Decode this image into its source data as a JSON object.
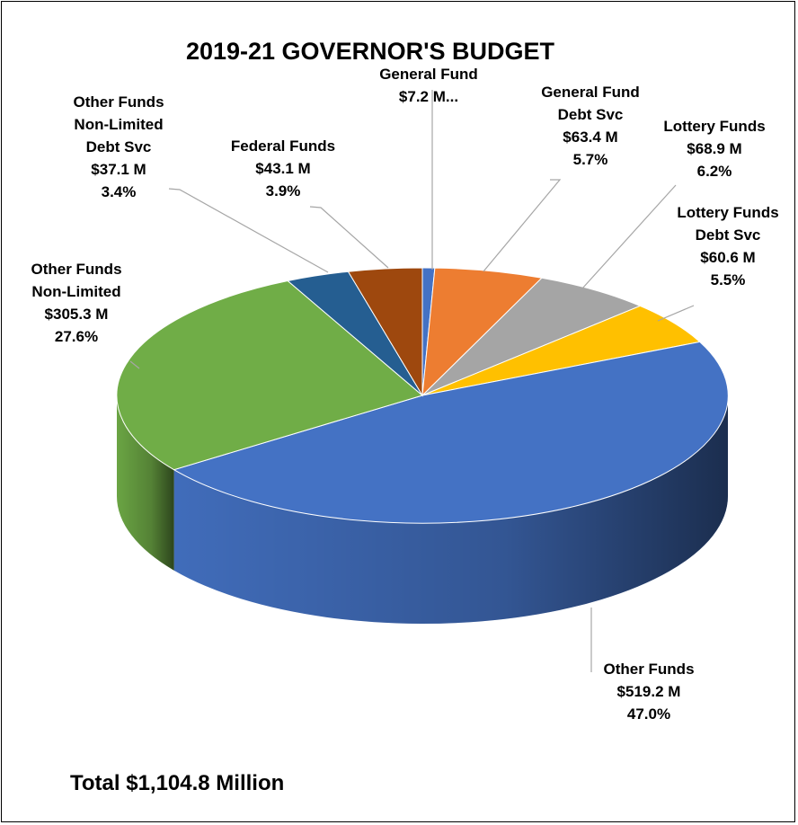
{
  "chart_data": {
    "type": "pie",
    "title": "2019-21 GOVERNOR'S BUDGET",
    "total_label": "Total $1,104.8 Million",
    "slices": [
      {
        "name": "General Fund",
        "value": 7.2,
        "label_lines": [
          "General Fund",
          "$7.2 M..."
        ],
        "color": "#4472c4"
      },
      {
        "name": "General Fund Debt Svc",
        "value": 63.4,
        "percent": 5.7,
        "label_lines": [
          "General Fund",
          "Debt Svc",
          "$63.4 M",
          "5.7%"
        ],
        "color": "#ed7d31"
      },
      {
        "name": "Lottery Funds",
        "value": 68.9,
        "percent": 6.2,
        "label_lines": [
          "Lottery Funds",
          "$68.9 M",
          "6.2%"
        ],
        "color": "#a5a5a5"
      },
      {
        "name": "Lottery Funds Debt Svc",
        "value": 60.6,
        "percent": 5.5,
        "label_lines": [
          "Lottery Funds",
          "Debt Svc",
          "$60.6 M",
          "5.5%"
        ],
        "color": "#ffc000"
      },
      {
        "name": "Other Funds",
        "value": 519.2,
        "percent": 47.0,
        "label_lines": [
          "Other Funds",
          "$519.2 M",
          "47.0%"
        ],
        "color": "#4472c4"
      },
      {
        "name": "Other Funds Non-Limited",
        "value": 305.3,
        "percent": 27.6,
        "label_lines": [
          "Other Funds",
          "Non-Limited",
          "$305.3 M",
          "27.6%"
        ],
        "color": "#70ad47"
      },
      {
        "name": "Other Funds Non-Limited Debt Svc",
        "value": 37.1,
        "percent": 3.4,
        "label_lines": [
          "Other Funds",
          "Non-Limited",
          "Debt Svc",
          "$37.1 M",
          "3.4%"
        ],
        "color": "#255e91"
      },
      {
        "name": "Federal Funds",
        "value": 43.1,
        "percent": 3.9,
        "label_lines": [
          "Federal Funds",
          "$43.1 M",
          "3.9%"
        ],
        "color": "#9e480e"
      }
    ]
  }
}
